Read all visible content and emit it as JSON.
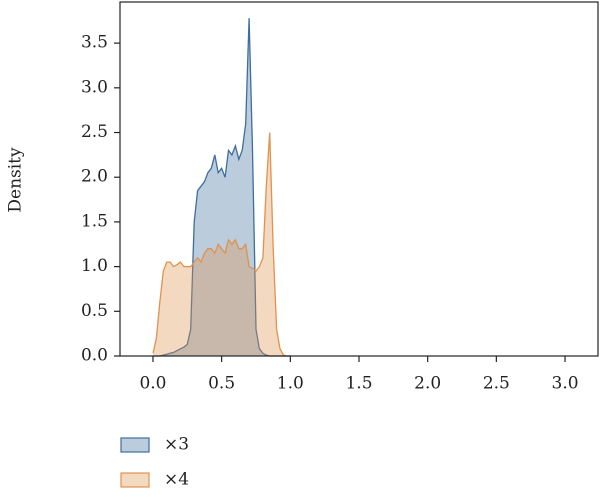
{
  "chart_data": {
    "type": "density",
    "y_label": "Density",
    "x": [
      0,
      0.025,
      0.05,
      0.075,
      0.1,
      0.125,
      0.15,
      0.175,
      0.2,
      0.225,
      0.25,
      0.275,
      0.3,
      0.325,
      0.35,
      0.375,
      0.4,
      0.425,
      0.45,
      0.475,
      0.5,
      0.525,
      0.55,
      0.575,
      0.6,
      0.625,
      0.65,
      0.675,
      0.7,
      0.725,
      0.75,
      0.775,
      0.8,
      0.825,
      0.85,
      0.875,
      0.9,
      0.925,
      0.95,
      0.975,
      1.0
    ],
    "series": [
      {
        "name": "×3",
        "color": "#3d6e9e",
        "values": [
          0,
          0,
          0,
          0.01,
          0.02,
          0.03,
          0.04,
          0.06,
          0.08,
          0.1,
          0.13,
          0.3,
          1.5,
          1.85,
          1.9,
          1.95,
          2.05,
          2.1,
          2.25,
          2.05,
          2.1,
          2.0,
          2.3,
          2.25,
          2.35,
          2.2,
          2.3,
          2.6,
          3.78,
          2.3,
          0.3,
          0.08,
          0.03,
          0.01,
          0,
          0,
          0,
          0,
          0,
          0,
          0
        ]
      },
      {
        "name": "×4",
        "color": "#e0924e",
        "values": [
          0.03,
          0.2,
          0.6,
          0.95,
          1.05,
          1.05,
          1.0,
          1.02,
          1.05,
          1.0,
          1.0,
          1.0,
          1.05,
          1.1,
          1.05,
          1.15,
          1.2,
          1.2,
          1.15,
          1.25,
          1.2,
          1.15,
          1.3,
          1.25,
          1.3,
          1.2,
          1.2,
          1.25,
          1.0,
          0.98,
          0.95,
          1.0,
          1.1,
          1.9,
          2.5,
          1.2,
          0.3,
          0.08,
          0.01,
          0,
          0
        ]
      }
    ],
    "xlim": [
      -0.24,
      3.24
    ],
    "ylim": [
      0,
      3.96
    ],
    "xticks": [
      {
        "value": 0,
        "label": "0.0"
      },
      0.5,
      {
        "value": 1,
        "label": "1.0"
      },
      1.5,
      {
        "value": 2,
        "label": "2.0"
      },
      2.5,
      {
        "value": 3,
        "label": "3.0"
      }
    ],
    "yticks": [
      {
        "value": 0,
        "label": "0.0"
      },
      0.5,
      {
        "value": 1,
        "label": "1.0"
      },
      1.5,
      {
        "value": 2,
        "label": "2.0"
      },
      2.5,
      {
        "value": 3,
        "label": "3.0"
      },
      3.5
    ],
    "fill_opacity": 0.35
  }
}
